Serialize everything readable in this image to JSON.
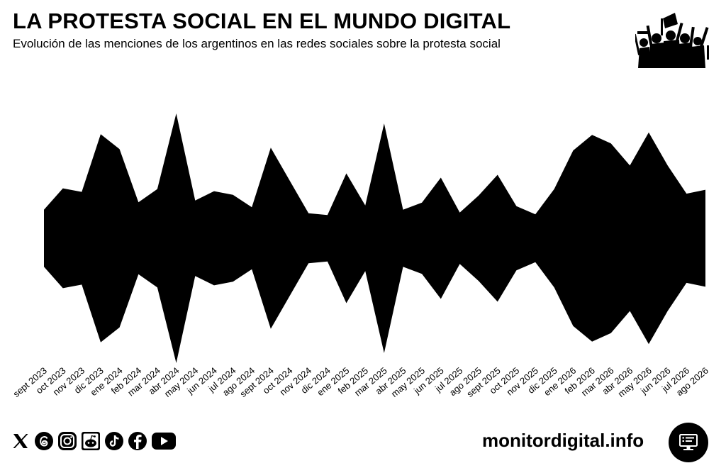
{
  "header": {
    "title": "LA PROTESTA SOCIAL EN EL MUNDO DIGITAL",
    "subtitle": "Evolución de las menciones de los argentinos en las redes sociales sobre la protesta social"
  },
  "icons": {
    "crowd": "protest-crowd-icon",
    "social": [
      "x-icon",
      "threads-icon",
      "instagram-icon",
      "reddit-icon",
      "tiktok-icon",
      "facebook-icon",
      "youtube-icon"
    ],
    "monitor": "monitor-icon"
  },
  "footer": {
    "site": "monitordigital.info"
  },
  "colors": {
    "stream": "#000000",
    "background": "#ffffff",
    "text": "#000000"
  },
  "chart_data": {
    "type": "area",
    "style": "symmetric streamgraph",
    "title": "",
    "xlabel": "",
    "ylabel": "",
    "axes_visible": false,
    "grid": false,
    "legend": "none",
    "categories": [
      "sept 2023",
      "oct 2023",
      "nov 2023",
      "dic 2023",
      "ene 2024",
      "feb 2024",
      "mar 2024",
      "abr 2024",
      "may 2024",
      "jun 2024",
      "jul 2024",
      "ago 2024",
      "sept 2024",
      "oct 2024",
      "nov 2024",
      "dic 2024",
      "ene 2025",
      "feb 2025",
      "mar 2025",
      "abr 2025",
      "may 2025",
      "jun 2025",
      "jul 2025",
      "ago 2025",
      "sept 2025",
      "oct 2025",
      "nov 2025",
      "dic 2025",
      "ene 2026",
      "feb 2026",
      "mar 2026",
      "abr 2026",
      "may 2026",
      "jun 2026",
      "jul 2026",
      "ago 2026"
    ],
    "series": [
      {
        "values": [
          80,
          140,
          130,
          292,
          250,
          101,
          138,
          350,
          106,
          132,
          122,
          87,
          254,
          162,
          70,
          65,
          182,
          92,
          322,
          80,
          100,
          170,
          72,
          120,
          178,
          90,
          67,
          138,
          246,
          290,
          266,
          204,
          297,
          204,
          125,
          136
        ]
      }
    ]
  }
}
